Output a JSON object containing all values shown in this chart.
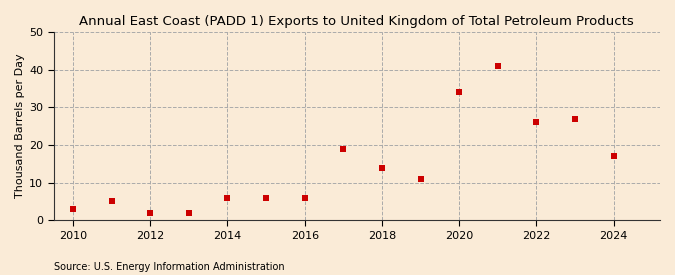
{
  "title": "Annual East Coast (PADD 1) Exports to United Kingdom of Total Petroleum Products",
  "ylabel": "Thousand Barrels per Day",
  "source": "Source: U.S. Energy Information Administration",
  "background_color": "#faebd7",
  "years": [
    2010,
    2011,
    2012,
    2013,
    2014,
    2015,
    2016,
    2017,
    2018,
    2019,
    2020,
    2021,
    2022,
    2023,
    2024
  ],
  "values": [
    3,
    5,
    2,
    2,
    6,
    6,
    6,
    19,
    14,
    11,
    34,
    41,
    26,
    27,
    17
  ],
  "marker_color": "#cc0000",
  "marker_style": "s",
  "marker_size": 5,
  "xlim": [
    2009.5,
    2025.2
  ],
  "ylim": [
    0,
    50
  ],
  "yticks": [
    0,
    10,
    20,
    30,
    40,
    50
  ],
  "xticks": [
    2010,
    2012,
    2014,
    2016,
    2018,
    2020,
    2022,
    2024
  ],
  "grid_color": "#aaaaaa",
  "grid_linestyle": "--",
  "vgrid_linestyle": "--",
  "title_fontsize": 9.5,
  "axis_fontsize": 8,
  "source_fontsize": 7
}
